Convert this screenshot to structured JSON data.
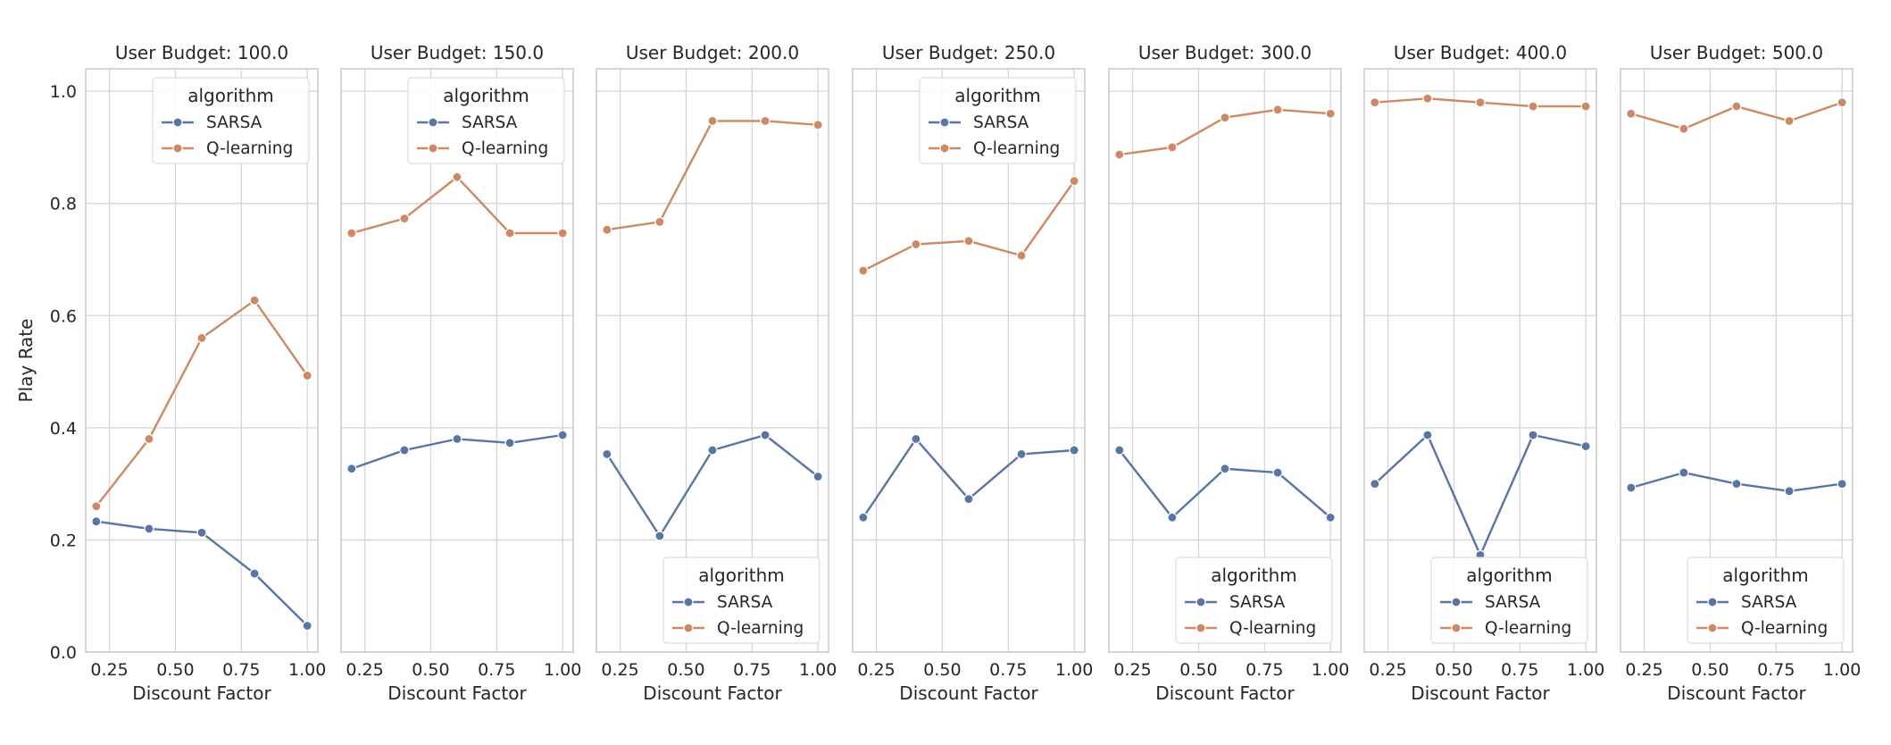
{
  "chart_data": {
    "type": "line",
    "ylabel": "Play Rate",
    "xlabel": "Discount Factor",
    "xlim": [
      0.16,
      1.04
    ],
    "ylim": [
      0.0,
      1.04
    ],
    "xticks": [
      "0.25",
      "0.50",
      "0.75",
      "1.00"
    ],
    "xtick_values": [
      0.25,
      0.5,
      0.75,
      1.0
    ],
    "yticks": [
      "0.0",
      "0.2",
      "0.4",
      "0.6",
      "0.8",
      "1.0"
    ],
    "ytick_values": [
      0.0,
      0.2,
      0.4,
      0.6,
      0.8,
      1.0
    ],
    "x": [
      0.2,
      0.4,
      0.6,
      0.8,
      1.0
    ],
    "legend_title": "algorithm",
    "series_names": [
      "SARSA",
      "Q-learning"
    ],
    "colors": {
      "SARSA": "#5875a4",
      "Q-learning": "#cc8963",
      "grid": "#d5d5d5",
      "spine": "#cccccc"
    },
    "panels": [
      {
        "title": "User Budget: 100.0",
        "legend": "top-right",
        "series": [
          {
            "name": "SARSA",
            "values": [
              0.233,
              0.22,
              0.213,
              0.14,
              0.047
            ]
          },
          {
            "name": "Q-learning",
            "values": [
              0.26,
              0.38,
              0.56,
              0.627,
              0.493
            ]
          }
        ]
      },
      {
        "title": "User Budget: 150.0",
        "legend": "top-right",
        "series": [
          {
            "name": "SARSA",
            "values": [
              0.327,
              0.36,
              0.38,
              0.373,
              0.387
            ]
          },
          {
            "name": "Q-learning",
            "values": [
              0.747,
              0.773,
              0.847,
              0.747,
              0.747
            ]
          }
        ]
      },
      {
        "title": "User Budget: 200.0",
        "legend": "bottom-right",
        "series": [
          {
            "name": "SARSA",
            "values": [
              0.353,
              0.207,
              0.36,
              0.387,
              0.313
            ]
          },
          {
            "name": "Q-learning",
            "values": [
              0.753,
              0.767,
              0.947,
              0.947,
              0.94
            ]
          }
        ]
      },
      {
        "title": "User Budget: 250.0",
        "legend": "top-right",
        "series": [
          {
            "name": "SARSA",
            "values": [
              0.24,
              0.38,
              0.273,
              0.353,
              0.36
            ]
          },
          {
            "name": "Q-learning",
            "values": [
              0.68,
              0.727,
              0.733,
              0.707,
              0.84
            ]
          }
        ]
      },
      {
        "title": "User Budget: 300.0",
        "legend": "bottom-right",
        "series": [
          {
            "name": "SARSA",
            "values": [
              0.36,
              0.24,
              0.327,
              0.32,
              0.24
            ]
          },
          {
            "name": "Q-learning",
            "values": [
              0.887,
              0.9,
              0.953,
              0.967,
              0.96
            ]
          }
        ]
      },
      {
        "title": "User Budget: 400.0",
        "legend": "bottom-right",
        "series": [
          {
            "name": "SARSA",
            "values": [
              0.3,
              0.387,
              0.173,
              0.387,
              0.367
            ]
          },
          {
            "name": "Q-learning",
            "values": [
              0.98,
              0.987,
              0.98,
              0.973,
              0.973
            ]
          }
        ]
      },
      {
        "title": "User Budget: 500.0",
        "legend": "bottom-right",
        "series": [
          {
            "name": "SARSA",
            "values": [
              0.293,
              0.32,
              0.3,
              0.287,
              0.3
            ]
          },
          {
            "name": "Q-learning",
            "values": [
              0.96,
              0.933,
              0.973,
              0.947,
              0.98
            ]
          }
        ]
      }
    ]
  }
}
